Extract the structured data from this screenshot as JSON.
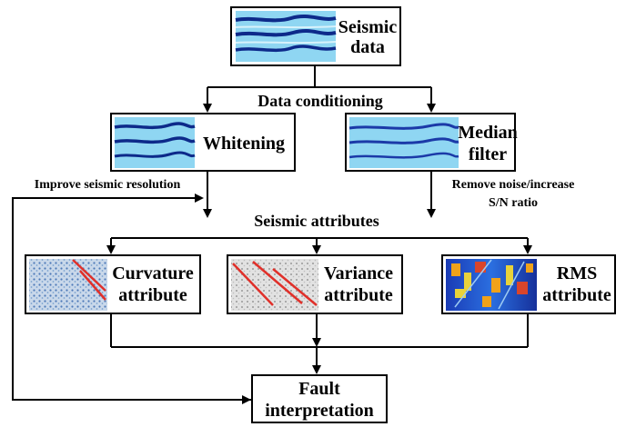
{
  "nodes": {
    "seismic": {
      "line1": "Seismic",
      "line2": "data"
    },
    "whitening": {
      "label": "Whitening"
    },
    "median": {
      "line1": "Median",
      "line2": "filter"
    },
    "curvature": {
      "line1": "Curvature",
      "line2": "attribute"
    },
    "variance": {
      "line1": "Variance",
      "line2": "attribute"
    },
    "rms": {
      "line1": "RMS",
      "line2": "attribute"
    },
    "fault": {
      "line1": "Fault",
      "line2": "interpretation"
    }
  },
  "labels": {
    "data_conditioning": "Data conditioning",
    "seismic_attributes": "Seismic attributes",
    "improve_resolution": "Improve seismic resolution",
    "remove_noise_line1": "Remove noise/increase",
    "remove_noise_line2": "S/N ratio"
  },
  "colors": {
    "seismic_bg": "#8fd6f2",
    "seismic_band": "#0d2a8a",
    "fault_line": "#e0302a",
    "rms_hot": "#f0a21a"
  }
}
